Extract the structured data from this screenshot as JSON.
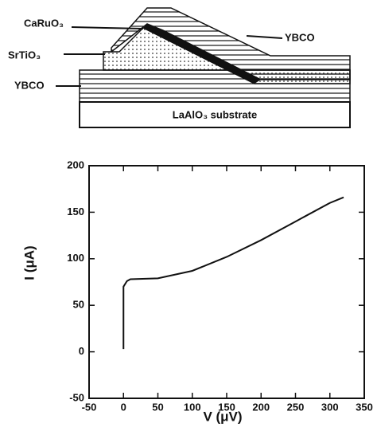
{
  "diagram": {
    "labels": {
      "caruo3": "CaRuO₃",
      "srtio3": "SrTiO₃",
      "ybco_left": "YBCO",
      "ybco_right": "YBCO",
      "substrate": "LaAlO₃ substrate"
    }
  },
  "chart_data": {
    "type": "line",
    "x_label": "V (μV)",
    "y_label": "I (μA)",
    "color": "#111111",
    "x": [
      0,
      0,
      0,
      5,
      10,
      50,
      100,
      150,
      200,
      250,
      300,
      320
    ],
    "values": [
      3,
      40,
      70,
      76,
      78,
      79,
      87,
      102,
      120,
      140,
      160,
      166
    ],
    "xlim": [
      -50,
      350
    ],
    "xticks": [
      -50,
      0,
      50,
      100,
      150,
      200,
      250,
      300,
      350
    ],
    "ylim": [
      -50,
      200
    ],
    "yticks": [
      -50,
      0,
      50,
      100,
      150,
      200
    ]
  }
}
